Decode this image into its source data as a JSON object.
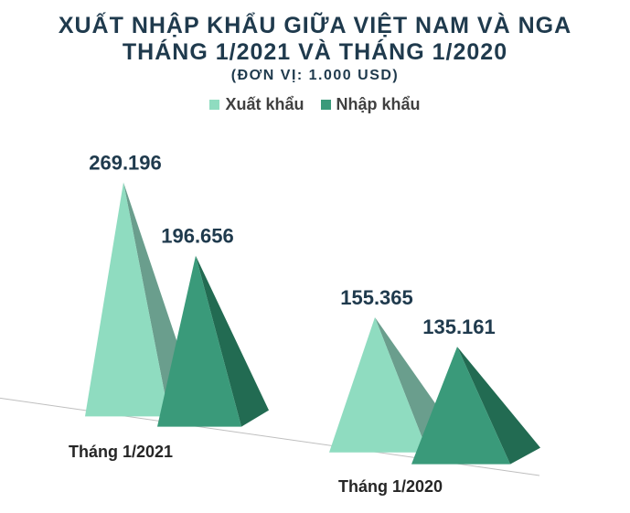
{
  "chart_data": {
    "type": "bar",
    "title_lines": [
      "XUẤT NHẬP KHẨU GIỮA VIỆT NAM VÀ NGA",
      "THÁNG 1/2021 VÀ THÁNG 1/2020"
    ],
    "subtitle": "(ĐƠN VỊ: 1.000 USD)",
    "categories": [
      "Tháng 1/2021",
      "Tháng 1/2020"
    ],
    "series": [
      {
        "name": "Xuất khẩu",
        "values": [
          269196,
          155365
        ],
        "labels": [
          "269.196",
          "155.365"
        ],
        "color": "#8fdcc0",
        "shade": "#6a9e8d"
      },
      {
        "name": "Nhập khẩu",
        "values": [
          196656,
          135161
        ],
        "labels": [
          "196.656",
          "135.161"
        ],
        "color": "#3a9a7a",
        "shade": "#226b52"
      }
    ],
    "mark_shape": "3d-pyramid",
    "legend_position": "top",
    "grid": false
  }
}
